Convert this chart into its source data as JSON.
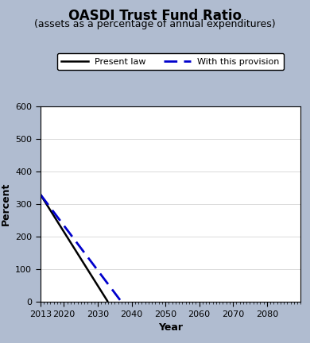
{
  "title": "OASDI Trust Fund Ratio",
  "subtitle": "(assets as a percentage of annual expenditures)",
  "xlabel": "Year",
  "ylabel": "Percent",
  "xlim": [
    2013,
    2090
  ],
  "ylim": [
    0,
    600
  ],
  "yticks": [
    0,
    100,
    200,
    300,
    400,
    500,
    600
  ],
  "xticks": [
    2013,
    2020,
    2030,
    2040,
    2050,
    2060,
    2070,
    2080
  ],
  "background_color": "#b0bcd0",
  "plot_bg_color": "#ffffff",
  "present_law": {
    "years": [
      2013,
      2033
    ],
    "values": [
      330,
      0
    ],
    "color": "#000000",
    "linewidth": 1.8,
    "linestyle": "solid",
    "label": "Present law"
  },
  "provision": {
    "years": [
      2013,
      2037
    ],
    "values": [
      330,
      0
    ],
    "color": "#0000cc",
    "linewidth": 2.0,
    "linestyle": "dashed",
    "label": "With this provision"
  },
  "legend_fontsize": 8,
  "title_fontsize": 12,
  "subtitle_fontsize": 9,
  "axis_label_fontsize": 9,
  "tick_fontsize": 8
}
